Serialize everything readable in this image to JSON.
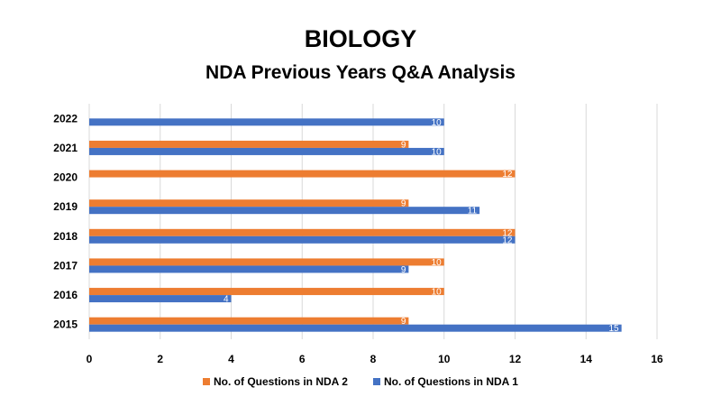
{
  "chart_data": {
    "type": "bar",
    "orientation": "horizontal",
    "title": "BIOLOGY",
    "subtitle": "NDA Previous Years Q&A Analysis",
    "categories": [
      "2015",
      "2016",
      "2017",
      "2018",
      "2019",
      "2020",
      "2021",
      "2022"
    ],
    "series": [
      {
        "name": "No. of Questions in NDA 2",
        "values": [
          9,
          10,
          10,
          12,
          9,
          12,
          9,
          null
        ],
        "color": "#ED7D31"
      },
      {
        "name": "No. of Questions in NDA 1",
        "values": [
          15,
          4,
          9,
          12,
          11,
          null,
          10,
          10
        ],
        "color": "#4472C4"
      }
    ],
    "x_ticks": [
      "0",
      "2",
      "4",
      "6",
      "8",
      "10",
      "12",
      "14",
      "16"
    ],
    "xlim": [
      0,
      16
    ],
    "xlabel": "",
    "ylabel": "",
    "grid": true,
    "legend_position": "bottom",
    "data_labels": true
  }
}
